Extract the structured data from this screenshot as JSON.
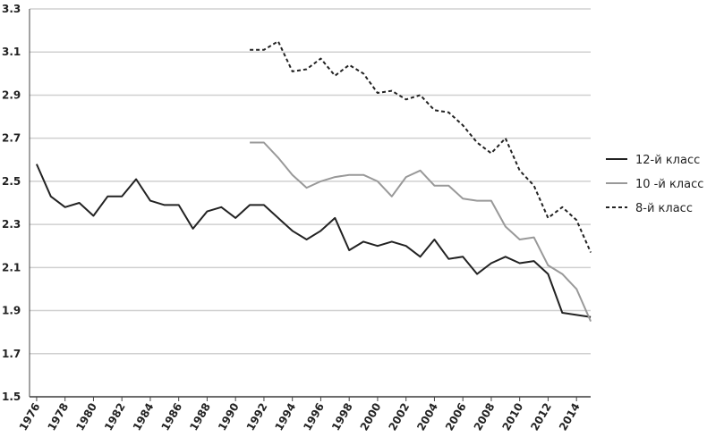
{
  "chart_data": {
    "type": "line",
    "x": [
      1976,
      1977,
      1978,
      1979,
      1980,
      1981,
      1982,
      1983,
      1984,
      1985,
      1986,
      1987,
      1988,
      1989,
      1990,
      1991,
      1992,
      1993,
      1994,
      1995,
      1996,
      1997,
      1998,
      1999,
      2000,
      2001,
      2002,
      2003,
      2004,
      2005,
      2006,
      2007,
      2008,
      2009,
      2010,
      2011,
      2012,
      2013,
      2014,
      2015
    ],
    "series": [
      {
        "name": "12-й класс",
        "color": "#222222",
        "style": "solid",
        "values": [
          2.58,
          2.43,
          2.38,
          2.4,
          2.34,
          2.43,
          2.43,
          2.51,
          2.41,
          2.39,
          2.39,
          2.28,
          2.36,
          2.38,
          2.33,
          2.39,
          2.39,
          2.33,
          2.27,
          2.23,
          2.27,
          2.33,
          2.18,
          2.22,
          2.2,
          2.22,
          2.2,
          2.15,
          2.23,
          2.14,
          2.15,
          2.07,
          2.12,
          2.15,
          2.12,
          2.13,
          2.07,
          1.89,
          1.88,
          1.87
        ]
      },
      {
        "name": "10 -й класс",
        "color": "#999999",
        "style": "solid",
        "values": [
          null,
          null,
          null,
          null,
          null,
          null,
          null,
          null,
          null,
          null,
          null,
          null,
          null,
          null,
          null,
          2.68,
          2.68,
          2.61,
          2.53,
          2.47,
          2.5,
          2.52,
          2.53,
          2.53,
          2.5,
          2.43,
          2.52,
          2.55,
          2.48,
          2.48,
          2.42,
          2.41,
          2.41,
          2.29,
          2.23,
          2.24,
          2.11,
          2.07,
          2.0,
          1.85
        ]
      },
      {
        "name": "8-й класс",
        "color": "#222222",
        "style": "dashed",
        "values": [
          null,
          null,
          null,
          null,
          null,
          null,
          null,
          null,
          null,
          null,
          null,
          null,
          null,
          null,
          null,
          3.11,
          3.11,
          3.15,
          3.01,
          3.02,
          3.07,
          2.99,
          3.04,
          3.0,
          2.91,
          2.92,
          2.88,
          2.9,
          2.83,
          2.82,
          2.76,
          2.68,
          2.63,
          2.7,
          2.55,
          2.48,
          2.33,
          2.38,
          2.32,
          2.17
        ]
      }
    ],
    "xlim": [
      1975.5,
      2015.5
    ],
    "xticks": [
      1976,
      1978,
      1980,
      1982,
      1984,
      1986,
      1988,
      1990,
      1992,
      1994,
      1996,
      1998,
      2000,
      2002,
      2004,
      2006,
      2008,
      2010,
      2012,
      2014
    ],
    "ylim": [
      1.5,
      3.3
    ],
    "yticks": [
      1.5,
      1.7,
      1.9,
      2.1,
      2.3,
      2.5,
      2.7,
      2.9,
      3.1,
      3.3
    ],
    "grid": true,
    "legend": "right"
  }
}
